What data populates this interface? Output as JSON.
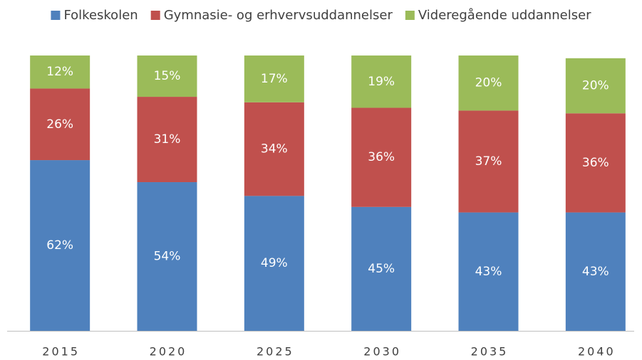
{
  "chart_data": {
    "type": "stacked_bar",
    "categories": [
      "2015",
      "2020",
      "2025",
      "2030",
      "2035",
      "2040"
    ],
    "series": [
      {
        "name": "Folkeskolen",
        "color": "#4f81bd",
        "values": [
          62,
          54,
          49,
          45,
          43,
          43
        ],
        "value_labels": [
          "62%",
          "54%",
          "49%",
          "45%",
          "43%",
          "43%"
        ]
      },
      {
        "name": "Gymnasie- og erhvervsuddannelser",
        "color": "#c0504d",
        "values": [
          26,
          31,
          34,
          36,
          37,
          36
        ],
        "value_labels": [
          "26%",
          "31%",
          "34%",
          "36%",
          "37%",
          "36%"
        ]
      },
      {
        "name": "Videregående uddannelser",
        "color": "#9bbb59",
        "values": [
          12,
          15,
          17,
          19,
          20,
          20
        ],
        "value_labels": [
          "12%",
          "15%",
          "17%",
          "19%",
          "20%",
          "20%"
        ]
      }
    ],
    "legend": "top"
  }
}
